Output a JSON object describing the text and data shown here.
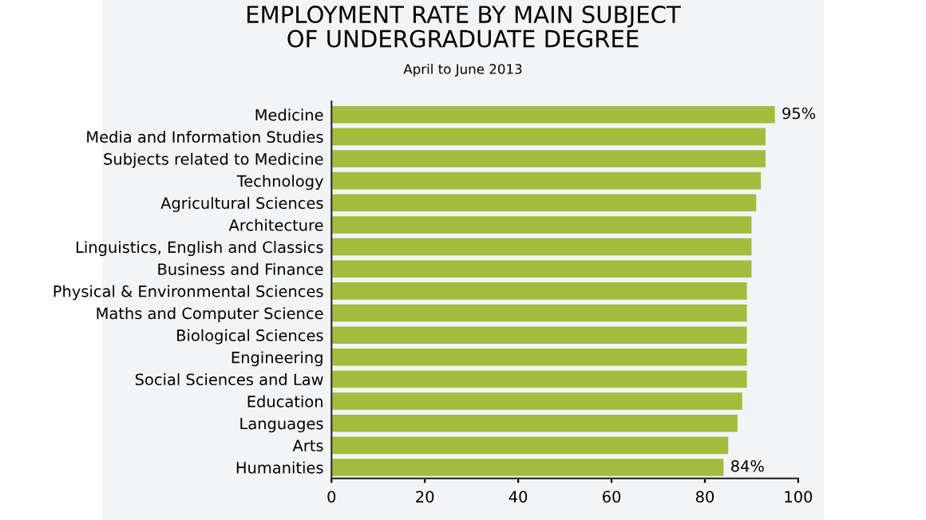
{
  "chart_data": {
    "type": "bar",
    "orientation": "horizontal",
    "title": "EMPLOYMENT RATE BY MAIN SUBJECT\nOF UNDERGRADUATE DEGREE",
    "subtitle": "April to June 2013",
    "categories": [
      "Medicine",
      "Media and Information Studies",
      "Subjects related to Medicine",
      "Technology",
      "Agricultural Sciences",
      "Architecture",
      "Linguistics, English and Classics",
      "Business and Finance",
      "Physical & Environmental Sciences",
      "Maths and Computer Science",
      "Biological Sciences",
      "Engineering",
      "Social Sciences and Law",
      "Education",
      "Languages",
      "Arts",
      "Humanities"
    ],
    "values": [
      95,
      93,
      93,
      92,
      91,
      90,
      90,
      90,
      89,
      89,
      89,
      89,
      89,
      88,
      87,
      85,
      84
    ],
    "value_labels": [
      "95%",
      null,
      null,
      null,
      null,
      null,
      null,
      null,
      null,
      null,
      null,
      null,
      null,
      null,
      null,
      null,
      "84%"
    ],
    "color": "#a4bc3c",
    "xlim": [
      0,
      100
    ],
    "xticks": [
      0,
      20,
      40,
      60,
      80,
      100
    ],
    "grid": false,
    "legend": false
  }
}
